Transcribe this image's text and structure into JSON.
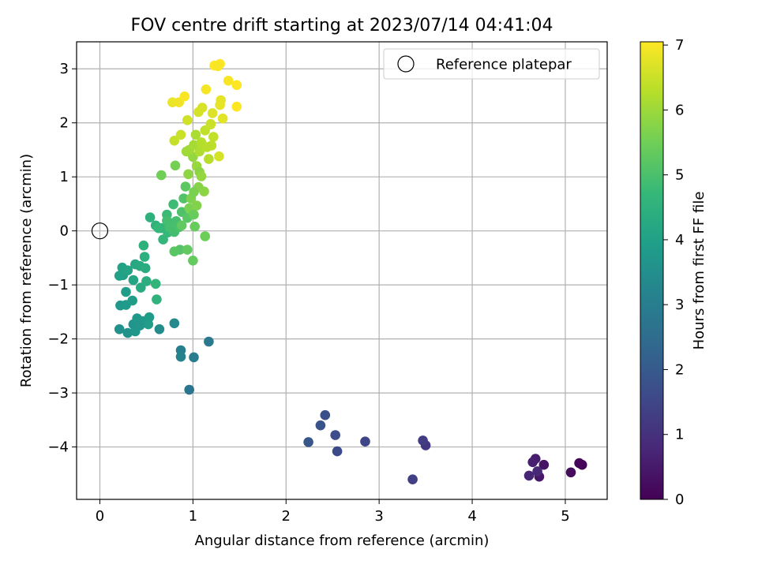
{
  "chart_data": {
    "type": "scatter",
    "title": "FOV centre drift starting at 2023/07/14 04:41:04",
    "xlabel": "Angular distance from reference (arcmin)",
    "ylabel": "Rotation from reference (arcmin)",
    "xlim": [
      -0.25,
      5.45
    ],
    "ylim": [
      -4.97,
      3.5
    ],
    "xticks": [
      0,
      1,
      2,
      3,
      4,
      5
    ],
    "yticks": [
      -4,
      -3,
      -2,
      -1,
      0,
      1,
      2,
      3
    ],
    "grid": true,
    "legend_position": "top-right",
    "legend": [
      {
        "label": "Reference platepar",
        "marker": "open-circle"
      }
    ],
    "reference_point": {
      "x": 0,
      "y": 0
    },
    "colorbar": {
      "label": "Hours from first FF file",
      "colormap": "viridis",
      "min": 0,
      "max": 7.05,
      "ticks": [
        0,
        1,
        2,
        3,
        4,
        5,
        6,
        7
      ]
    },
    "colormap_stops": [
      "#440154",
      "#482878",
      "#3e4989",
      "#31688e",
      "#26828e",
      "#1f9e89",
      "#35b779",
      "#6ece58",
      "#b5de2b",
      "#fde725"
    ],
    "series": [
      {
        "points": [
          [
            5.18,
            -4.33,
            0.05
          ],
          [
            5.15,
            -4.3,
            0.1
          ],
          [
            5.06,
            -4.47,
            0.2
          ],
          [
            4.77,
            -4.33,
            0.35
          ],
          [
            4.72,
            -4.55,
            0.45
          ],
          [
            4.68,
            -4.22,
            0.55
          ],
          [
            4.65,
            -4.28,
            0.6
          ],
          [
            4.61,
            -4.53,
            0.75
          ],
          [
            4.7,
            -4.45,
            0.8
          ],
          [
            3.5,
            -3.97,
            1.15
          ],
          [
            3.47,
            -3.88,
            1.25
          ],
          [
            3.36,
            -4.6,
            1.35
          ],
          [
            2.85,
            -3.9,
            1.5
          ],
          [
            2.55,
            -4.08,
            1.6
          ],
          [
            2.53,
            -3.78,
            1.65
          ],
          [
            2.42,
            -3.41,
            1.75
          ],
          [
            2.37,
            -3.6,
            1.8
          ],
          [
            2.24,
            -3.91,
            1.9
          ],
          [
            0.96,
            -2.94,
            2.75
          ],
          [
            1.17,
            -2.05,
            2.85
          ],
          [
            1.01,
            -2.34,
            2.95
          ],
          [
            0.87,
            -2.21,
            3.05
          ],
          [
            0.87,
            -2.33,
            3.15
          ],
          [
            0.8,
            -1.71,
            3.35
          ],
          [
            0.64,
            -1.82,
            3.45
          ],
          [
            0.21,
            -1.82,
            3.55
          ],
          [
            0.3,
            -1.89,
            3.6
          ],
          [
            0.36,
            -1.73,
            3.65
          ],
          [
            0.38,
            -1.86,
            3.7
          ],
          [
            0.4,
            -1.62,
            3.75
          ],
          [
            0.46,
            -1.67,
            3.8
          ],
          [
            0.52,
            -1.73,
            3.85
          ],
          [
            0.53,
            -1.6,
            3.9
          ],
          [
            0.43,
            -1.75,
            3.7
          ],
          [
            0.22,
            -1.38,
            3.75
          ],
          [
            0.28,
            -1.37,
            3.8
          ],
          [
            0.35,
            -1.29,
            3.85
          ],
          [
            0.28,
            -1.13,
            3.9
          ],
          [
            0.25,
            -0.82,
            3.95
          ],
          [
            0.21,
            -0.83,
            4.0
          ],
          [
            0.24,
            -0.68,
            4.05
          ],
          [
            0.3,
            -0.73,
            4.1
          ],
          [
            0.36,
            -0.91,
            4.15
          ],
          [
            0.38,
            -0.62,
            4.2
          ],
          [
            0.43,
            -0.65,
            4.25
          ],
          [
            0.44,
            -1.05,
            4.3
          ],
          [
            0.49,
            -0.69,
            4.35
          ],
          [
            0.5,
            -0.93,
            4.4
          ],
          [
            0.48,
            -0.48,
            4.45
          ],
          [
            0.47,
            -0.27,
            4.5
          ],
          [
            0.61,
            -1.27,
            4.55
          ],
          [
            0.6,
            -0.98,
            4.6
          ],
          [
            0.54,
            0.25,
            4.5
          ],
          [
            0.6,
            0.1,
            4.55
          ],
          [
            0.66,
            0.05,
            4.6
          ],
          [
            0.68,
            -0.16,
            4.65
          ],
          [
            0.73,
            -0.03,
            4.7
          ],
          [
            0.75,
            0.15,
            4.75
          ],
          [
            0.72,
            0.3,
            4.8
          ],
          [
            0.79,
            0.49,
            4.85
          ],
          [
            0.8,
            -0.02,
            4.9
          ],
          [
            0.82,
            0.18,
            4.95
          ],
          [
            0.85,
            0.07,
            5.0
          ],
          [
            0.88,
            0.35,
            5.05
          ],
          [
            0.9,
            0.6,
            5.1
          ],
          [
            0.86,
            -0.35,
            5.15
          ],
          [
            0.8,
            -0.38,
            5.2
          ],
          [
            0.92,
            0.82,
            5.25
          ],
          [
            0.94,
            -0.35,
            5.3
          ],
          [
            1.0,
            -0.55,
            5.35
          ],
          [
            1.02,
            0.08,
            5.4
          ],
          [
            1.13,
            -0.1,
            5.45
          ],
          [
            0.66,
            1.03,
            5.5
          ],
          [
            0.81,
            1.21,
            5.55
          ],
          [
            0.96,
            0.42,
            5.6
          ],
          [
            0.98,
            0.6,
            5.65
          ],
          [
            1.04,
            0.47,
            5.7
          ],
          [
            1.06,
            0.81,
            5.75
          ],
          [
            1.12,
            0.73,
            5.8
          ],
          [
            0.95,
            1.05,
            5.85
          ],
          [
            1.0,
            1.37,
            5.9
          ],
          [
            1.04,
            1.2,
            5.95
          ],
          [
            0.93,
            1.47,
            6.0
          ],
          [
            0.96,
            1.5,
            6.05
          ],
          [
            1.01,
            1.59,
            6.1
          ],
          [
            1.03,
            1.78,
            6.15
          ],
          [
            1.07,
            1.47,
            6.2
          ],
          [
            1.09,
            1.64,
            6.25
          ],
          [
            1.17,
            1.33,
            6.3
          ],
          [
            1.2,
            1.58,
            6.35
          ],
          [
            1.13,
            1.86,
            6.4
          ],
          [
            0.8,
            1.67,
            6.45
          ],
          [
            0.87,
            1.78,
            6.5
          ],
          [
            0.94,
            2.05,
            6.55
          ],
          [
            1.06,
            2.2,
            6.6
          ],
          [
            1.1,
            2.28,
            6.65
          ],
          [
            1.19,
            1.98,
            6.7
          ],
          [
            1.32,
            2.08,
            6.75
          ],
          [
            1.29,
            2.33,
            6.8
          ],
          [
            0.78,
            2.38,
            6.85
          ],
          [
            0.85,
            2.38,
            6.9
          ],
          [
            1.14,
            2.62,
            6.95
          ],
          [
            0.91,
            2.49,
            7.0
          ],
          [
            1.38,
            2.78,
            7.0
          ],
          [
            1.47,
            2.7,
            7.05
          ],
          [
            1.23,
            3.06,
            7.05
          ],
          [
            1.29,
            3.09,
            7.05
          ],
          [
            1.27,
            3.05,
            7.0
          ],
          [
            1.47,
            2.3,
            7.05
          ],
          [
            1.3,
            2.42,
            6.8
          ],
          [
            1.28,
            1.38,
            6.6
          ],
          [
            1.19,
            1.97,
            6.5
          ],
          [
            1.22,
            1.74,
            6.4
          ],
          [
            1.15,
            1.55,
            6.3
          ],
          [
            1.21,
            2.18,
            6.7
          ],
          [
            1.01,
            0.72,
            5.6
          ],
          [
            1.07,
            1.09,
            5.8
          ],
          [
            1.09,
            1.01,
            5.9
          ],
          [
            0.94,
            0.24,
            5.2
          ],
          [
            0.88,
            0.1,
            5.3
          ],
          [
            1.01,
            0.3,
            5.4
          ],
          [
            0.72,
            0.19,
            4.9
          ],
          [
            0.75,
            0.07,
            4.95
          ],
          [
            0.63,
            0.05,
            4.7
          ]
        ]
      }
    ]
  }
}
